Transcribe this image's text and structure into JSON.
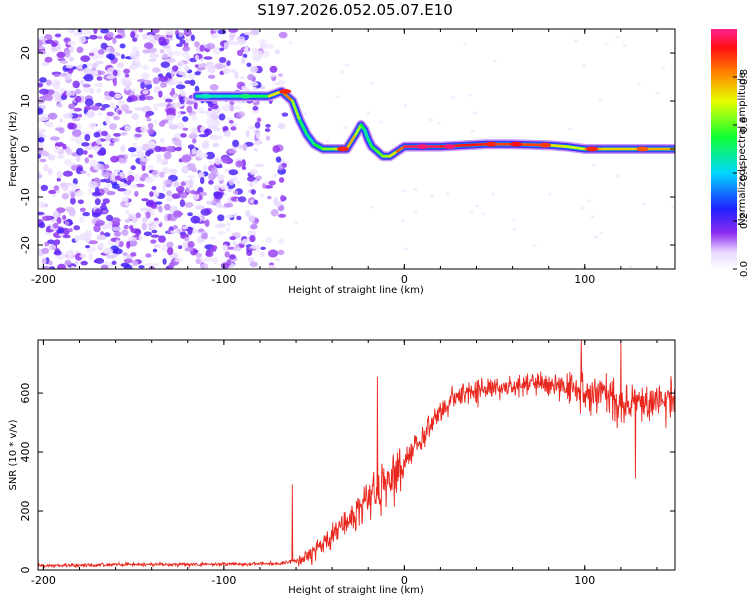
{
  "title": "S197.2026.052.05.07.E10",
  "chart_data": [
    {
      "type": "heatmap",
      "title": "",
      "xlabel": "Height of straight line (km)",
      "ylabel": "Frequency (Hz)",
      "xlim": [
        -203,
        150
      ],
      "ylim": [
        -25,
        25
      ],
      "xticks": [
        -200,
        -100,
        0,
        100
      ],
      "yticks": [
        -20,
        -10,
        0,
        10,
        20
      ],
      "noise_region_x": [
        -203,
        -65
      ],
      "signal_ridge": {
        "x": [
          -115,
          -108,
          -95,
          -85,
          -75,
          -68,
          -62,
          -58,
          -54,
          -50,
          -45,
          -38,
          -32,
          -27,
          -24,
          -22,
          -20,
          -18,
          -15,
          -12,
          -8,
          -4,
          0,
          20,
          45,
          60,
          80,
          90,
          100,
          110,
          120,
          135,
          150
        ],
        "freq": [
          11,
          11,
          11,
          11,
          11,
          12,
          10,
          6,
          3,
          1,
          0,
          0,
          0,
          3,
          5,
          4,
          2,
          0.5,
          -0.5,
          -1.5,
          -1.5,
          -0.5,
          0.5,
          0.5,
          1,
          1,
          0.8,
          0.5,
          0,
          0,
          0,
          0,
          0
        ],
        "amplitude": [
          0.5,
          0.45,
          0.45,
          0.5,
          0.55,
          0.9,
          0.75,
          0.55,
          0.5,
          0.45,
          0.65,
          0.6,
          0.85,
          0.7,
          0.6,
          0.5,
          0.45,
          0.55,
          0.6,
          0.6,
          0.7,
          0.75,
          0.95,
          0.98,
          0.85,
          0.9,
          0.85,
          0.6,
          0.75,
          0.8,
          0.7,
          0.8,
          0.75
        ]
      },
      "colorbar": {
        "label": "Normalized spectral amplitude",
        "range": [
          0,
          1
        ],
        "ticks": [
          "0.0",
          "0.2",
          "0.4",
          "0.6",
          "0.8"
        ],
        "tick_values": [
          0,
          0.2,
          0.4,
          0.6,
          0.8
        ]
      }
    },
    {
      "type": "line",
      "title": "",
      "xlabel": "Height of straight line (km)",
      "ylabel": "SNR (10 * v/v)",
      "xlim": [
        -203,
        150
      ],
      "ylim": [
        0,
        780
      ],
      "xticks": [
        -200,
        -100,
        0,
        100
      ],
      "yticks": [
        0,
        200,
        400,
        600
      ],
      "series": [
        {
          "name": "SNR",
          "color": "#e8281e",
          "trend_x": [
            -203,
            -150,
            -100,
            -70,
            -60,
            -50,
            -40,
            -30,
            -20,
            -10,
            0,
            10,
            20,
            30,
            40,
            60,
            80,
            90,
            100,
            110,
            120,
            130,
            140,
            150
          ],
          "trend_y": [
            15,
            18,
            20,
            22,
            30,
            60,
            120,
            180,
            230,
            290,
            360,
            450,
            540,
            590,
            610,
            630,
            630,
            620,
            610,
            590,
            560,
            580,
            570,
            560
          ],
          "spikes": [
            {
              "x": -62,
              "y": 290
            },
            {
              "x": -15,
              "y": 655
            },
            {
              "x": 98,
              "y": 780
            },
            {
              "x": 120,
              "y": 780
            },
            {
              "x": 128,
              "y": 310
            }
          ]
        }
      ]
    }
  ]
}
